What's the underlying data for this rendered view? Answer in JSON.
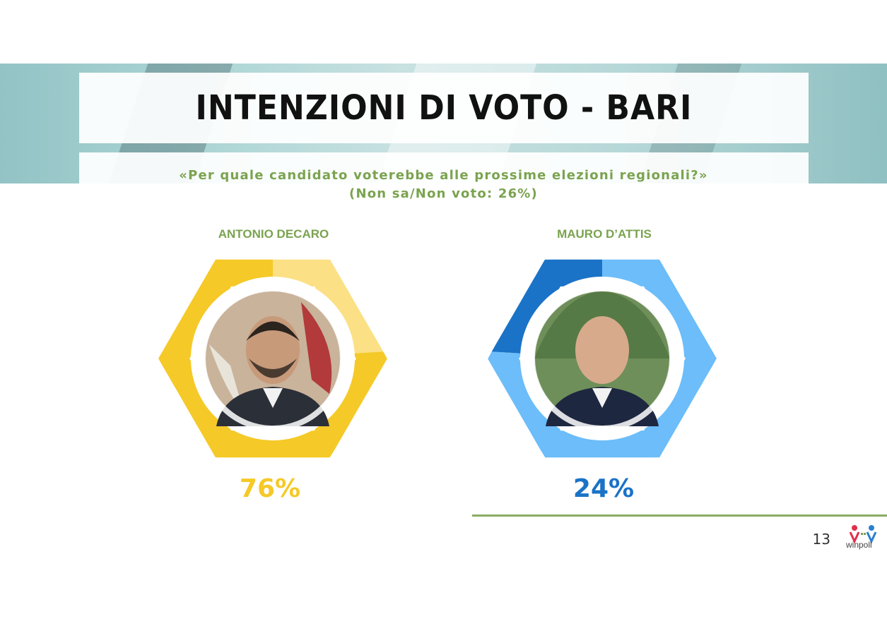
{
  "title": "INTENZIONI DI VOTO - BARI",
  "question": "«Per quale candidato voterebbe alle prossime elezioni regionali?»",
  "note": "(Non sa/Non voto: 26%)",
  "page_number": "13",
  "logo_text": "winpoll",
  "colors": {
    "title_text": "#111111",
    "accent_green": "#7aa34f",
    "candidate1_main": "#f5c927",
    "candidate1_light": "#fbe085",
    "candidate2_main": "#6cbdf9",
    "candidate2_dark": "#1a73c7"
  },
  "chart_data": {
    "type": "pie",
    "title": "INTENZIONI DI VOTO - BARI",
    "series": [
      {
        "name": "ANTONIO DECARO",
        "value": 76,
        "label": "76%",
        "color": "#f5c927",
        "remainder_color": "#fbe085",
        "photo_icon": "candidate-portrait-icon"
      },
      {
        "name": "MAURO D’ATTIS",
        "value": 24,
        "label": "24%",
        "color": "#1a73c7",
        "remainder_color": "#6cbdf9",
        "photo_icon": "candidate-portrait-icon"
      }
    ]
  }
}
